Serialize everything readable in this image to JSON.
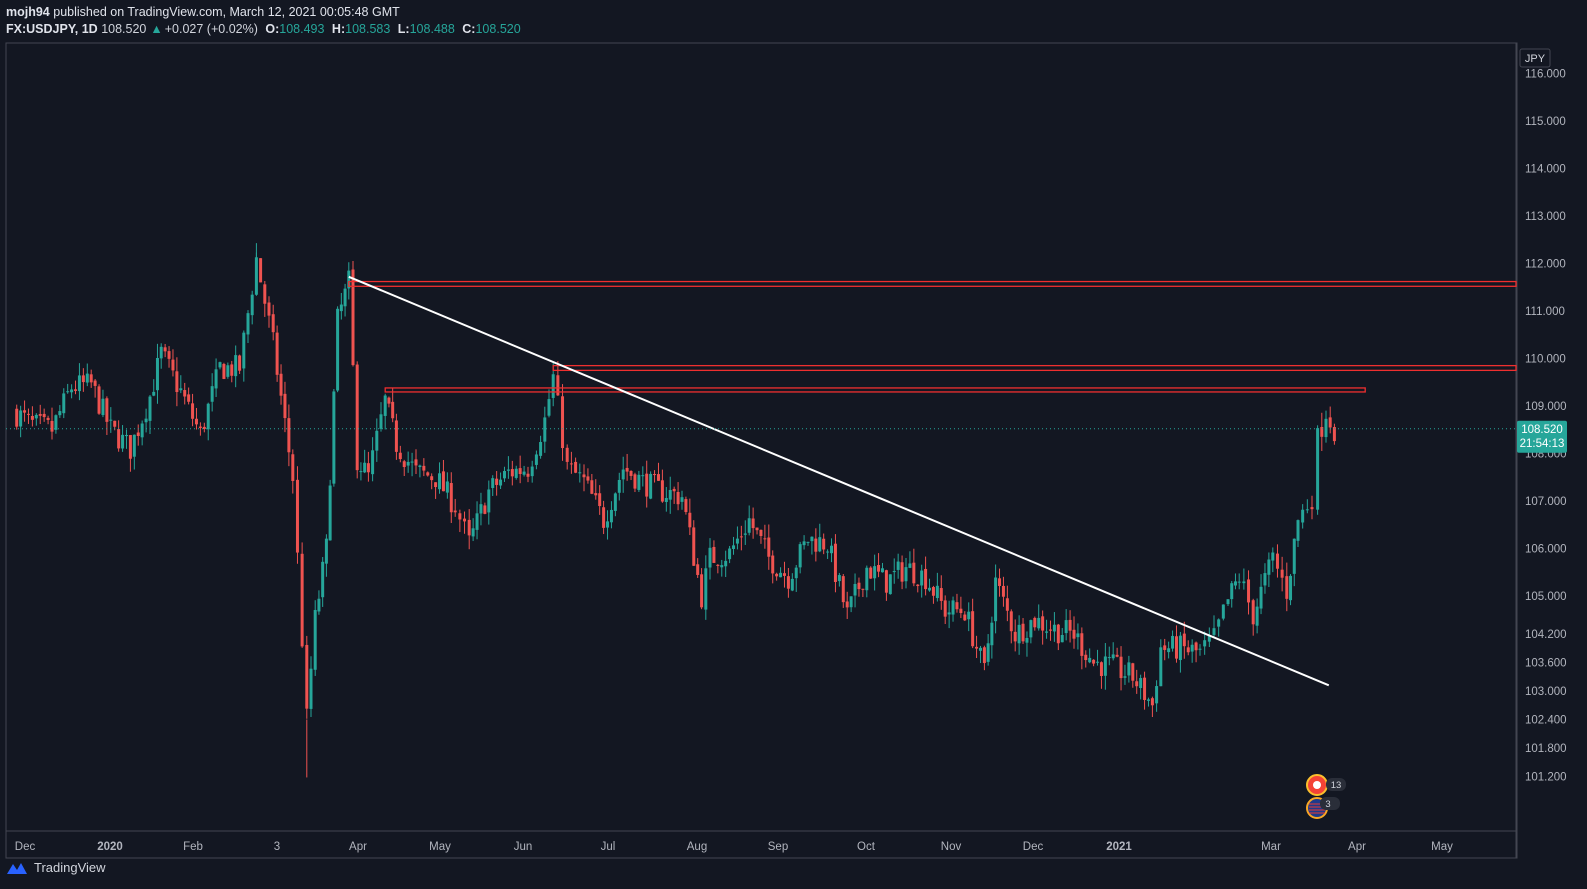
{
  "header": {
    "author": "mojh94",
    "published_text": "published on TradingView.com, March 12, 2021 00:05:48 GMT",
    "symbol": "FX:USDJPY, 1D",
    "last": "108.520",
    "change_arrow": "▲",
    "change": "+0.027 (+0.02%)",
    "open_label": "O:",
    "open": "108.493",
    "high_label": "H:",
    "high": "108.583",
    "low_label": "L:",
    "low": "108.488",
    "close_label": "C:",
    "close": "108.520"
  },
  "footer": {
    "brand": "TradingView",
    "logo_icon": "tradingview-logo-icon"
  },
  "colors": {
    "background": "#131722",
    "up": "#26a69a",
    "down": "#ef5350",
    "zone": "#ef2f2f",
    "trendline": "#ffffff",
    "axis_text": "#b2b5be"
  },
  "chart_data": {
    "type": "candlestick",
    "symbol": "FX:USDJPY",
    "interval": "1D",
    "currency_label": "JPY",
    "y_ticks": [
      "116.000",
      "115.000",
      "114.000",
      "113.000",
      "112.000",
      "111.000",
      "110.000",
      "109.000",
      "108.000",
      "107.000",
      "106.000",
      "105.000",
      "104.200",
      "103.600",
      "103.000",
      "102.400",
      "101.800",
      "101.200"
    ],
    "x_ticks": [
      "Dec",
      "2020",
      "Feb",
      "3",
      "Apr",
      "May",
      "Jun",
      "Jul",
      "Aug",
      "Sep",
      "Oct",
      "Nov",
      "Dec",
      "2021",
      "Mar",
      "Apr",
      "May"
    ],
    "last_price": "108.520",
    "countdown": "21:54:13",
    "resistance_zones": [
      {
        "from_date": "2020-03-24",
        "to_date": "2021-05-31",
        "low": 111.52,
        "high": 111.62
      },
      {
        "from_date": "2020-06-05",
        "to_date": "2021-05-31",
        "low": 109.75,
        "high": 109.85
      },
      {
        "from_date": "2020-04-06",
        "to_date": "2021-03-22",
        "low": 109.3,
        "high": 109.38
      }
    ],
    "trendline": {
      "from": {
        "date": "2020-03-24",
        "price": 111.72
      },
      "to": {
        "date": "2021-03-09",
        "price": 103.12
      }
    },
    "event_markers": [
      {
        "icon": "economic-event-icon",
        "count": "13"
      },
      {
        "icon": "us-flag-icon",
        "count": "3"
      }
    ],
    "series": [
      {
        "date": "2019-11-25",
        "close": 108.9
      },
      {
        "date": "2019-12-02",
        "close": 108.6
      },
      {
        "date": "2019-12-09",
        "close": 108.5
      },
      {
        "date": "2019-12-16",
        "close": 109.4
      },
      {
        "date": "2019-12-23",
        "close": 109.45
      },
      {
        "date": "2019-12-30",
        "close": 108.5
      },
      {
        "date": "2020-01-06",
        "close": 108.1
      },
      {
        "date": "2020-01-13",
        "close": 109.2
      },
      {
        "date": "2020-01-17",
        "close": 110.1
      },
      {
        "date": "2020-01-24",
        "close": 109.3
      },
      {
        "date": "2020-01-31",
        "close": 108.4
      },
      {
        "date": "2020-02-07",
        "close": 109.8
      },
      {
        "date": "2020-02-14",
        "close": 109.8
      },
      {
        "date": "2020-02-20",
        "close": 112.1
      },
      {
        "date": "2020-02-26",
        "close": 110.3
      },
      {
        "date": "2020-03-04",
        "close": 107.5
      },
      {
        "date": "2020-03-09",
        "close": 102.4
      },
      {
        "date": "2020-03-12",
        "close": 104.5
      },
      {
        "date": "2020-03-16",
        "close": 106.0
      },
      {
        "date": "2020-03-20",
        "close": 110.8
      },
      {
        "date": "2020-03-24",
        "close": 111.6
      },
      {
        "date": "2020-03-27",
        "close": 107.9
      },
      {
        "date": "2020-03-31",
        "close": 107.5
      },
      {
        "date": "2020-04-06",
        "close": 109.1
      },
      {
        "date": "2020-04-10",
        "close": 108.2
      },
      {
        "date": "2020-04-17",
        "close": 107.6
      },
      {
        "date": "2020-04-24",
        "close": 107.5
      },
      {
        "date": "2020-05-01",
        "close": 106.9
      },
      {
        "date": "2020-05-06",
        "close": 106.1
      },
      {
        "date": "2020-05-13",
        "close": 107.2
      },
      {
        "date": "2020-05-20",
        "close": 107.6
      },
      {
        "date": "2020-05-27",
        "close": 107.7
      },
      {
        "date": "2020-06-02",
        "close": 108.7
      },
      {
        "date": "2020-06-05",
        "close": 109.6
      },
      {
        "date": "2020-06-10",
        "close": 107.7
      },
      {
        "date": "2020-06-16",
        "close": 107.4
      },
      {
        "date": "2020-06-23",
        "close": 106.6
      },
      {
        "date": "2020-06-30",
        "close": 107.7
      },
      {
        "date": "2020-07-07",
        "close": 107.4
      },
      {
        "date": "2020-07-14",
        "close": 107.2
      },
      {
        "date": "2020-07-21",
        "close": 107.1
      },
      {
        "date": "2020-07-28",
        "close": 105.0
      },
      {
        "date": "2020-07-31",
        "close": 105.8
      },
      {
        "date": "2020-08-07",
        "close": 105.9
      },
      {
        "date": "2020-08-14",
        "close": 106.6
      },
      {
        "date": "2020-08-21",
        "close": 105.8
      },
      {
        "date": "2020-08-28",
        "close": 105.4
      },
      {
        "date": "2020-09-04",
        "close": 106.2
      },
      {
        "date": "2020-09-11",
        "close": 106.1
      },
      {
        "date": "2020-09-18",
        "close": 104.6
      },
      {
        "date": "2020-09-25",
        "close": 105.6
      },
      {
        "date": "2020-10-02",
        "close": 105.3
      },
      {
        "date": "2020-10-09",
        "close": 105.6
      },
      {
        "date": "2020-10-16",
        "close": 105.4
      },
      {
        "date": "2020-10-23",
        "close": 104.7
      },
      {
        "date": "2020-10-30",
        "close": 104.7
      },
      {
        "date": "2020-11-06",
        "close": 103.4
      },
      {
        "date": "2020-11-10",
        "close": 105.3
      },
      {
        "date": "2020-11-17",
        "close": 104.2
      },
      {
        "date": "2020-11-24",
        "close": 104.5
      },
      {
        "date": "2020-12-01",
        "close": 104.3
      },
      {
        "date": "2020-12-08",
        "close": 104.2
      },
      {
        "date": "2020-12-15",
        "close": 103.6
      },
      {
        "date": "2020-12-22",
        "close": 103.5
      },
      {
        "date": "2020-12-29",
        "close": 103.3
      },
      {
        "date": "2021-01-05",
        "close": 102.7
      },
      {
        "date": "2021-01-08",
        "close": 103.9
      },
      {
        "date": "2021-01-15",
        "close": 103.9
      },
      {
        "date": "2021-01-22",
        "close": 103.8
      },
      {
        "date": "2021-01-27",
        "close": 104.1
      },
      {
        "date": "2021-02-01",
        "close": 104.9
      },
      {
        "date": "2021-02-05",
        "close": 105.4
      },
      {
        "date": "2021-02-10",
        "close": 104.6
      },
      {
        "date": "2021-02-17",
        "close": 105.8
      },
      {
        "date": "2021-02-22",
        "close": 105.1
      },
      {
        "date": "2021-02-26",
        "close": 106.6
      },
      {
        "date": "2021-03-03",
        "close": 107.1
      },
      {
        "date": "2021-03-05",
        "close": 108.3
      },
      {
        "date": "2021-03-08",
        "close": 108.9
      },
      {
        "date": "2021-03-11",
        "close": 108.52
      }
    ]
  }
}
